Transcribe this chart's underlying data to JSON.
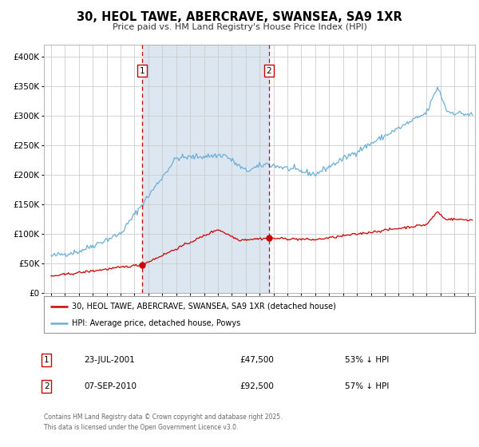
{
  "title": "30, HEOL TAWE, ABERCRAVE, SWANSEA, SA9 1XR",
  "subtitle": "Price paid vs. HM Land Registry's House Price Index (HPI)",
  "hpi_label": "HPI: Average price, detached house, Powys",
  "property_label": "30, HEOL TAWE, ABERCRAVE, SWANSEA, SA9 1XR (detached house)",
  "footer": "Contains HM Land Registry data © Crown copyright and database right 2025.\nThis data is licensed under the Open Government Licence v3.0.",
  "hpi_color": "#6baed6",
  "property_color": "#cc0000",
  "marker1_date": "23-JUL-2001",
  "marker1_price": 47500,
  "marker1_pct": "53% ↓ HPI",
  "marker1_x": 2001.55,
  "marker2_date": "07-SEP-2010",
  "marker2_price": 92500,
  "marker2_pct": "57% ↓ HPI",
  "marker2_x": 2010.68,
  "shade_color": "#dce6f1",
  "vline_color": "#cc0000",
  "ylim": [
    0,
    420000
  ],
  "xlim_left": 1994.5,
  "xlim_right": 2025.5,
  "grid_color": "#cccccc",
  "background_color": "#ffffff",
  "title_fontsize": 10.5,
  "subtitle_fontsize": 8,
  "tick_fontsize": 6.5,
  "ytick_fontsize": 7.5
}
